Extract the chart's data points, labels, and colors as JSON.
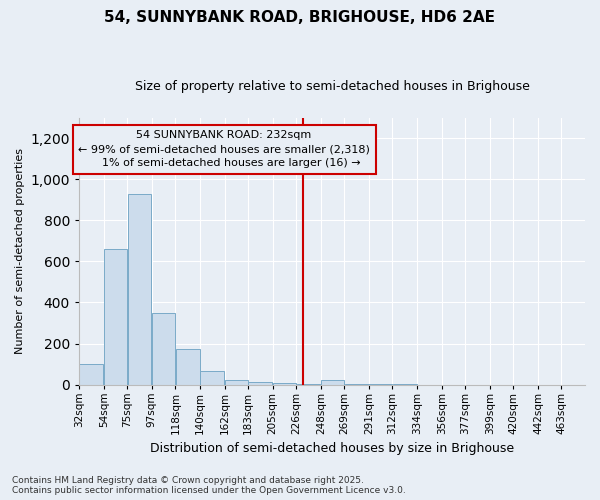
{
  "title1": "54, SUNNYBANK ROAD, BRIGHOUSE, HD6 2AE",
  "title2": "Size of property relative to semi-detached houses in Brighouse",
  "xlabel": "Distribution of semi-detached houses by size in Brighouse",
  "ylabel": "Number of semi-detached properties",
  "footer": "Contains HM Land Registry data © Crown copyright and database right 2025.\nContains public sector information licensed under the Open Government Licence v3.0.",
  "bar_color": "#ccdcec",
  "bar_edge_color": "#7aaac8",
  "categories": [
    "32sqm",
    "54sqm",
    "75sqm",
    "97sqm",
    "118sqm",
    "140sqm",
    "162sqm",
    "183sqm",
    "205sqm",
    "226sqm",
    "248sqm",
    "269sqm",
    "291sqm",
    "312sqm",
    "334sqm",
    "356sqm",
    "377sqm",
    "399sqm",
    "420sqm",
    "442sqm",
    "463sqm"
  ],
  "bin_left_edges": [
    32,
    54,
    75,
    97,
    118,
    140,
    162,
    183,
    205,
    226,
    248,
    269,
    291,
    312,
    334,
    356,
    377,
    399,
    420,
    442,
    463
  ],
  "values": [
    100,
    660,
    930,
    350,
    175,
    65,
    20,
    12,
    7,
    5,
    20,
    5,
    2,
    1,
    0,
    0,
    0,
    0,
    0,
    0,
    0
  ],
  "ylim": [
    0,
    1300
  ],
  "yticks": [
    0,
    200,
    400,
    600,
    800,
    1000,
    1200
  ],
  "property_size": 232,
  "property_label": "54 SUNNYBANK ROAD: 232sqm",
  "pct_smaller": "99% of semi-detached houses are smaller (2,318)",
  "pct_larger": "1% of semi-detached houses are larger (16) →",
  "arrow_left": "← ",
  "vline_color": "#cc0000",
  "bg_color": "#e8eef5",
  "grid_color": "#ffffff",
  "ann_fontsize": 8,
  "title1_fontsize": 11,
  "title2_fontsize": 9,
  "ylabel_fontsize": 8,
  "xlabel_fontsize": 9,
  "tick_fontsize": 7.5,
  "footer_fontsize": 6.5
}
